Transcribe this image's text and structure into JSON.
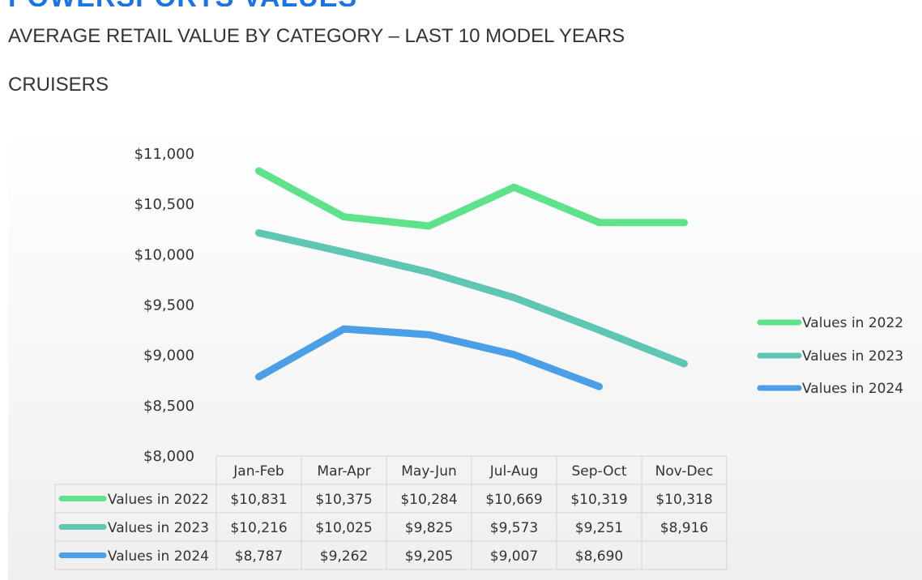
{
  "header": {
    "title": "POWERSPORTS VALUES",
    "subtitle": "AVERAGE RETAIL VALUE BY CATEGORY – LAST 10 MODEL YEARS",
    "category": "CRUISERS"
  },
  "chart_data": {
    "type": "line",
    "title": "",
    "xlabel": "",
    "ylabel": "",
    "ylim": [
      8000,
      11000
    ],
    "y_ticks": [
      "$8,000",
      "$8,500",
      "$9,000",
      "$9,500",
      "$10,000",
      "$10,500",
      "$11,000"
    ],
    "y_tick_values": [
      8000,
      8500,
      9000,
      9500,
      10000,
      10500,
      11000
    ],
    "categories": [
      "Jan-Feb",
      "Mar-Apr",
      "May-Jun",
      "Jul-Aug",
      "Sep-Oct",
      "Nov-Dec"
    ],
    "legend_position": "right",
    "data_table": true,
    "series": [
      {
        "name": "Values in 2022",
        "color": "#5ee28b",
        "values": [
          10831,
          10375,
          10284,
          10669,
          10319,
          10318
        ],
        "labels": [
          "$10,831",
          "$10,375",
          "$10,284",
          "$10,669",
          "$10,319",
          "$10,318"
        ]
      },
      {
        "name": "Values in 2023",
        "color": "#5fc6b4",
        "values": [
          10216,
          10025,
          9825,
          9573,
          9251,
          8916
        ],
        "labels": [
          "$10,216",
          "$10,025",
          "$9,825",
          "$9,573",
          "$9,251",
          "$8,916"
        ]
      },
      {
        "name": "Values in 2024",
        "color": "#4a9fe6",
        "values": [
          8787,
          9262,
          9205,
          9007,
          8690,
          null
        ],
        "labels": [
          "$8,787",
          "$9,262",
          "$9,205",
          "$9,007",
          "$8,690",
          ""
        ]
      }
    ]
  }
}
